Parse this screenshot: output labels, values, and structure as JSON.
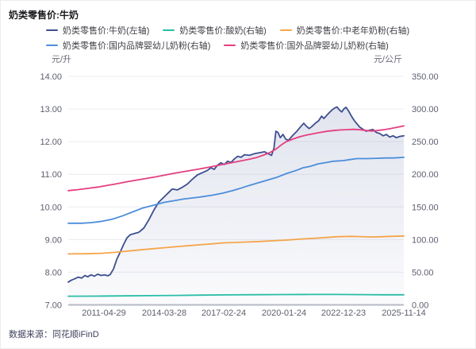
{
  "title": "奶类零售价:牛奶",
  "source": "数据来源：同花顺iFinD",
  "colors": {
    "milk": "#3D4F8E",
    "yogurt": "#2ABDA7",
    "middle_aged_powder": "#F5A54B",
    "domestic_infant_powder": "#4B8EDA",
    "foreign_infant_powder": "#E53F80",
    "gridline": "#EBECF1",
    "axis_line": "#B7BBC6",
    "area_fill": "#6673A9"
  },
  "chart_data": {
    "type": "line",
    "title": "奶类零售价:牛奶",
    "legend_position": "top",
    "grid": true,
    "y_left": {
      "unit": "元/升",
      "min": 7,
      "max": 14,
      "ticks": [
        "14.00",
        "13.00",
        "12.00",
        "11.00",
        "10.00",
        "9.00",
        "8.00",
        "7.00"
      ]
    },
    "y_right": {
      "unit": "元/公斤",
      "min": 0,
      "max": 350,
      "ticks": [
        "350.00",
        "300.00",
        "250.00",
        "200.00",
        "150.00",
        "100.00",
        "50.00",
        "0.00"
      ]
    },
    "x_ticks": [
      {
        "label": "2011-04-29",
        "f": 0.1064
      },
      {
        "label": "2014-03-28",
        "f": 0.2861
      },
      {
        "label": "2017-02-24",
        "f": 0.4634
      },
      {
        "label": "2020-01-24",
        "f": 0.643
      },
      {
        "label": "2022-12-23",
        "f": 0.8203
      },
      {
        "label": "2025-11-14",
        "f": 1.0
      }
    ],
    "legend_rows": [
      [
        0,
        1,
        2
      ],
      [
        3,
        4
      ]
    ],
    "series": [
      {
        "name": "奶类零售价:牛奶(左轴)",
        "axis": "left",
        "color": "#3D4F8E",
        "area": true,
        "points": [
          [
            0.0,
            7.7
          ],
          [
            0.01,
            7.76
          ],
          [
            0.02,
            7.8
          ],
          [
            0.03,
            7.85
          ],
          [
            0.04,
            7.82
          ],
          [
            0.05,
            7.9
          ],
          [
            0.058,
            7.86
          ],
          [
            0.068,
            7.92
          ],
          [
            0.078,
            7.88
          ],
          [
            0.088,
            7.94
          ],
          [
            0.098,
            7.9
          ],
          [
            0.108,
            7.92
          ],
          [
            0.118,
            7.89
          ],
          [
            0.125,
            7.93
          ],
          [
            0.135,
            8.1
          ],
          [
            0.145,
            8.4
          ],
          [
            0.155,
            8.62
          ],
          [
            0.165,
            8.85
          ],
          [
            0.175,
            9.05
          ],
          [
            0.185,
            9.15
          ],
          [
            0.195,
            9.18
          ],
          [
            0.21,
            9.22
          ],
          [
            0.225,
            9.35
          ],
          [
            0.24,
            9.6
          ],
          [
            0.255,
            9.9
          ],
          [
            0.27,
            10.15
          ],
          [
            0.285,
            10.3
          ],
          [
            0.3,
            10.45
          ],
          [
            0.31,
            10.55
          ],
          [
            0.325,
            10.52
          ],
          [
            0.34,
            10.6
          ],
          [
            0.355,
            10.7
          ],
          [
            0.37,
            10.85
          ],
          [
            0.385,
            10.98
          ],
          [
            0.4,
            11.05
          ],
          [
            0.415,
            11.12
          ],
          [
            0.425,
            11.2
          ],
          [
            0.435,
            11.15
          ],
          [
            0.445,
            11.28
          ],
          [
            0.455,
            11.35
          ],
          [
            0.465,
            11.3
          ],
          [
            0.475,
            11.4
          ],
          [
            0.485,
            11.36
          ],
          [
            0.495,
            11.47
          ],
          [
            0.505,
            11.55
          ],
          [
            0.515,
            11.52
          ],
          [
            0.525,
            11.6
          ],
          [
            0.54,
            11.58
          ],
          [
            0.555,
            11.63
          ],
          [
            0.57,
            11.66
          ],
          [
            0.585,
            11.69
          ],
          [
            0.598,
            11.62
          ],
          [
            0.606,
            11.58
          ],
          [
            0.613,
            11.8
          ],
          [
            0.619,
            12.32
          ],
          [
            0.625,
            12.28
          ],
          [
            0.632,
            12.12
          ],
          [
            0.64,
            12.22
          ],
          [
            0.648,
            12.08
          ],
          [
            0.656,
            12.04
          ],
          [
            0.668,
            12.18
          ],
          [
            0.68,
            12.3
          ],
          [
            0.692,
            12.45
          ],
          [
            0.702,
            12.56
          ],
          [
            0.71,
            12.47
          ],
          [
            0.718,
            12.4
          ],
          [
            0.726,
            12.46
          ],
          [
            0.736,
            12.56
          ],
          [
            0.746,
            12.64
          ],
          [
            0.755,
            12.78
          ],
          [
            0.762,
            12.71
          ],
          [
            0.769,
            12.79
          ],
          [
            0.777,
            12.88
          ],
          [
            0.786,
            12.97
          ],
          [
            0.794,
            13.03
          ],
          [
            0.801,
            13.06
          ],
          [
            0.808,
            12.97
          ],
          [
            0.815,
            12.91
          ],
          [
            0.822,
            13.01
          ],
          [
            0.828,
            13.05
          ],
          [
            0.836,
            12.93
          ],
          [
            0.844,
            12.78
          ],
          [
            0.852,
            12.65
          ],
          [
            0.86,
            12.55
          ],
          [
            0.868,
            12.45
          ],
          [
            0.878,
            12.38
          ],
          [
            0.888,
            12.32
          ],
          [
            0.898,
            12.35
          ],
          [
            0.908,
            12.37
          ],
          [
            0.918,
            12.28
          ],
          [
            0.928,
            12.25
          ],
          [
            0.938,
            12.18
          ],
          [
            0.948,
            12.22
          ],
          [
            0.958,
            12.14
          ],
          [
            0.968,
            12.18
          ],
          [
            0.978,
            12.12
          ],
          [
            0.988,
            12.16
          ],
          [
            1.0,
            12.18
          ]
        ]
      },
      {
        "name": "奶类零售价:酸奶(右轴)",
        "axis": "right",
        "color": "#2ABDA7",
        "area": false,
        "points": [
          [
            0.0,
            13.3
          ],
          [
            0.08,
            13.4
          ],
          [
            0.16,
            13.7
          ],
          [
            0.24,
            14.1
          ],
          [
            0.32,
            14.5
          ],
          [
            0.4,
            15.0
          ],
          [
            0.48,
            15.4
          ],
          [
            0.56,
            15.6
          ],
          [
            0.64,
            15.8
          ],
          [
            0.72,
            16.0
          ],
          [
            0.8,
            15.9
          ],
          [
            0.88,
            15.7
          ],
          [
            0.94,
            15.5
          ],
          [
            1.0,
            15.5
          ]
        ]
      },
      {
        "name": "奶类零售价:中老年奶粉(右轴)",
        "axis": "right",
        "color": "#F5A54B",
        "area": false,
        "points": [
          [
            0.0,
            78
          ],
          [
            0.05,
            78.3
          ],
          [
            0.1,
            79
          ],
          [
            0.14,
            80.5
          ],
          [
            0.19,
            83
          ],
          [
            0.24,
            85.5
          ],
          [
            0.286,
            87.5
          ],
          [
            0.33,
            89.5
          ],
          [
            0.38,
            91.5
          ],
          [
            0.43,
            93.5
          ],
          [
            0.463,
            95
          ],
          [
            0.52,
            96
          ],
          [
            0.57,
            97
          ],
          [
            0.62,
            98.5
          ],
          [
            0.643,
            99
          ],
          [
            0.7,
            101
          ],
          [
            0.75,
            102.5
          ],
          [
            0.8,
            104.3
          ],
          [
            0.84,
            105
          ],
          [
            0.87,
            104.6
          ],
          [
            0.9,
            104
          ],
          [
            0.93,
            104.3
          ],
          [
            0.96,
            105
          ],
          [
            1.0,
            105.5
          ]
        ]
      },
      {
        "name": "奶类零售价:国内品牌婴幼儿奶粉(右轴)",
        "axis": "right",
        "color": "#4B8EDA",
        "area": false,
        "points": [
          [
            0.0,
            125
          ],
          [
            0.04,
            125
          ],
          [
            0.07,
            126
          ],
          [
            0.1,
            128
          ],
          [
            0.13,
            131
          ],
          [
            0.16,
            136
          ],
          [
            0.19,
            142
          ],
          [
            0.22,
            148
          ],
          [
            0.25,
            152
          ],
          [
            0.286,
            157
          ],
          [
            0.32,
            160
          ],
          [
            0.343,
            162
          ],
          [
            0.39,
            165
          ],
          [
            0.43,
            168
          ],
          [
            0.46,
            171
          ],
          [
            0.49,
            175
          ],
          [
            0.51,
            178
          ],
          [
            0.54,
            183
          ],
          [
            0.58,
            189
          ],
          [
            0.62,
            195
          ],
          [
            0.65,
            201
          ],
          [
            0.68,
            206
          ],
          [
            0.7,
            210
          ],
          [
            0.72,
            212
          ],
          [
            0.745,
            216
          ],
          [
            0.77,
            218
          ],
          [
            0.79,
            220
          ],
          [
            0.82,
            221
          ],
          [
            0.84,
            222.5
          ],
          [
            0.86,
            224
          ],
          [
            0.89,
            224
          ],
          [
            0.92,
            224.5
          ],
          [
            0.95,
            225
          ],
          [
            0.97,
            225
          ],
          [
            1.0,
            226
          ]
        ]
      },
      {
        "name": "奶类零售价:国外品牌婴幼儿奶粉(右轴)",
        "axis": "right",
        "color": "#E53F80",
        "area": false,
        "points": [
          [
            0.0,
            175
          ],
          [
            0.03,
            176.5
          ],
          [
            0.06,
            178.5
          ],
          [
            0.09,
            180.5
          ],
          [
            0.106,
            182
          ],
          [
            0.14,
            185
          ],
          [
            0.18,
            189
          ],
          [
            0.22,
            192.5
          ],
          [
            0.26,
            196
          ],
          [
            0.286,
            198.5
          ],
          [
            0.32,
            202
          ],
          [
            0.36,
            205.5
          ],
          [
            0.39,
            208
          ],
          [
            0.42,
            211
          ],
          [
            0.45,
            214
          ],
          [
            0.48,
            217
          ],
          [
            0.51,
            220
          ],
          [
            0.54,
            223
          ],
          [
            0.56,
            225.5
          ],
          [
            0.58,
            229
          ],
          [
            0.6,
            233
          ],
          [
            0.62,
            239
          ],
          [
            0.635,
            245
          ],
          [
            0.65,
            250
          ],
          [
            0.67,
            254
          ],
          [
            0.69,
            257.5
          ],
          [
            0.71,
            260
          ],
          [
            0.73,
            262
          ],
          [
            0.75,
            264
          ],
          [
            0.77,
            265.8
          ],
          [
            0.79,
            267
          ],
          [
            0.81,
            267.8
          ],
          [
            0.83,
            268.3
          ],
          [
            0.85,
            268.8
          ],
          [
            0.87,
            268.2
          ],
          [
            0.89,
            267
          ],
          [
            0.905,
            266.3
          ],
          [
            0.92,
            267
          ],
          [
            0.94,
            268.2
          ],
          [
            0.96,
            270
          ],
          [
            0.98,
            272
          ],
          [
            1.0,
            274
          ]
        ]
      }
    ]
  }
}
